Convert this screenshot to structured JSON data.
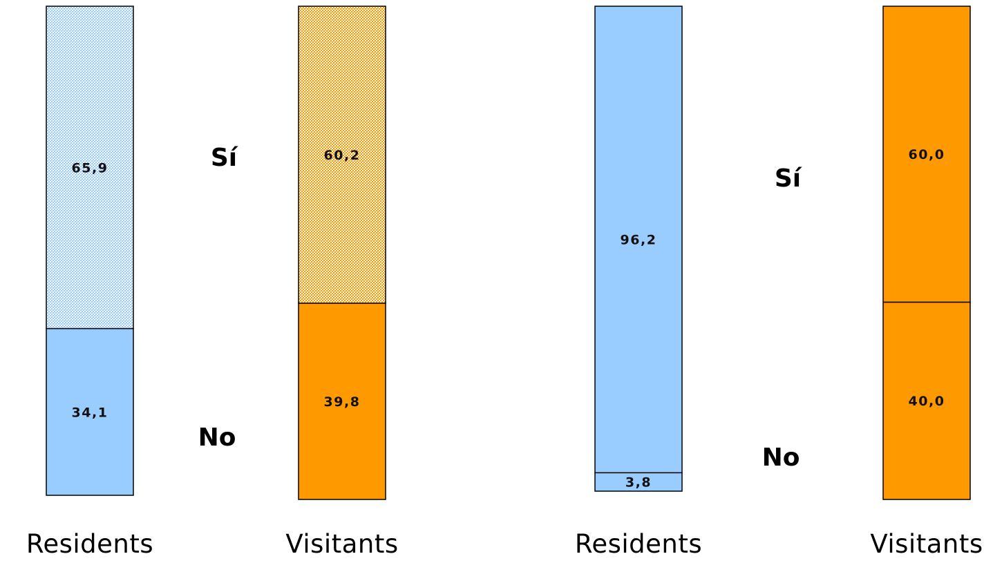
{
  "chart_data": [
    {
      "type": "bar",
      "stacked": true,
      "categories": [
        "Residents",
        "Visitants"
      ],
      "side_labels": {
        "top": "Sí",
        "bottom": "No"
      },
      "series": [
        {
          "name": "No",
          "values": [
            34.1,
            39.8
          ],
          "labels": [
            "34,1",
            "39,8"
          ]
        },
        {
          "name": "Sí",
          "values": [
            65.9,
            60.2
          ],
          "labels": [
            "65,9",
            "60,2"
          ]
        }
      ],
      "ylim": [
        0,
        100
      ],
      "colors": {
        "Residents": "#99CCFF",
        "Visitants": "#FF9900"
      },
      "hatched_series": "Sí",
      "grid": false
    },
    {
      "type": "bar",
      "stacked": true,
      "categories": [
        "Residents",
        "Visitants"
      ],
      "side_labels": {
        "top": "Sí",
        "bottom": "No"
      },
      "series": [
        {
          "name": "No",
          "values": [
            3.8,
            40.0
          ],
          "labels": [
            "3,8",
            "40,0"
          ]
        },
        {
          "name": "Sí",
          "values": [
            96.2,
            60.0
          ],
          "labels": [
            "96,2",
            "60,0"
          ]
        }
      ],
      "ylim": [
        0,
        100
      ],
      "colors": {
        "Residents": "#99CCFF",
        "Visitants": "#FF9900"
      },
      "hatched_series": null,
      "grid": false
    }
  ]
}
